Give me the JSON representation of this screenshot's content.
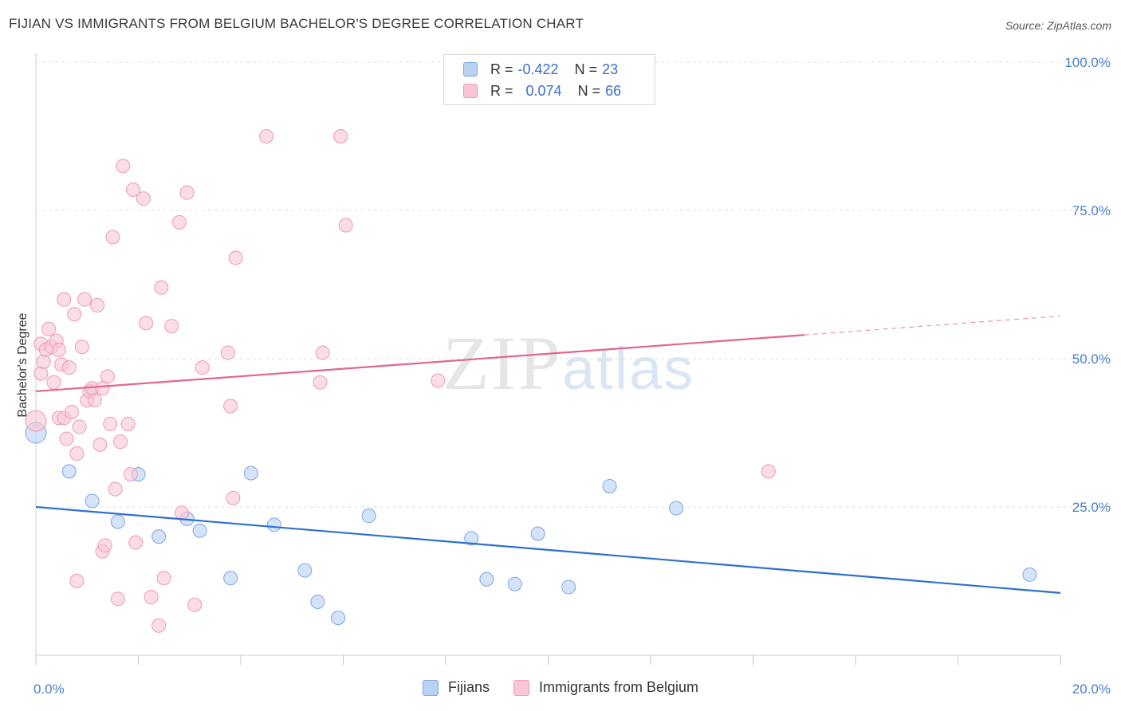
{
  "title": "FIJIAN VS IMMIGRANTS FROM BELGIUM BACHELOR'S DEGREE CORRELATION CHART",
  "source": "Source: ZipAtlas.com",
  "watermark": {
    "zip": "ZIP",
    "atlas": "atlas"
  },
  "legend": {
    "fijians": {
      "r_label": "R =",
      "r_value": "-0.422",
      "n_label": "N =",
      "n_value": "23"
    },
    "belgium": {
      "r_label": "R =",
      "r_value": "0.074",
      "n_label": "N =",
      "n_value": "66"
    }
  },
  "bottom_legend": {
    "fijians": "Fijians",
    "belgium": "Immigrants from Belgium"
  },
  "colors": {
    "fijians_fill": "#b9d1f3",
    "fijians_stroke": "#7aa6e6",
    "fijians_line": "#2f6fcf",
    "belgium_fill": "#f9c6d5",
    "belgium_stroke": "#ee99b4",
    "belgium_line": "#e2668f",
    "tick": "#4a7fd1",
    "grid": "#e0e0e0"
  },
  "chart_data": {
    "type": "scatter",
    "ylabel": "Bachelor's Degree",
    "xlim": [
      0,
      20
    ],
    "ylim": [
      0,
      100
    ],
    "x_ticks": [
      "0.0%",
      "20.0%"
    ],
    "y_ticks": [
      {
        "value": 25,
        "label": "25.0%"
      },
      {
        "value": 50,
        "label": "50.0%"
      },
      {
        "value": 75,
        "label": "75.0%"
      },
      {
        "value": 100,
        "label": "100.0%"
      }
    ],
    "grid": true,
    "legend_position": "top-center",
    "series": [
      {
        "name": "Fijians",
        "points": [
          [
            0.0,
            37.5
          ],
          [
            0.65,
            31.0
          ],
          [
            1.1,
            26.0
          ],
          [
            1.6,
            22.5
          ],
          [
            2.0,
            30.5
          ],
          [
            2.4,
            20.0
          ],
          [
            2.95,
            23.0
          ],
          [
            3.2,
            21.0
          ],
          [
            3.8,
            13.0
          ],
          [
            4.2,
            30.7
          ],
          [
            4.65,
            22.0
          ],
          [
            5.25,
            14.3
          ],
          [
            5.5,
            9.0
          ],
          [
            5.9,
            6.3
          ],
          [
            6.5,
            23.5
          ],
          [
            8.5,
            19.7
          ],
          [
            8.8,
            12.8
          ],
          [
            9.35,
            12.0
          ],
          [
            9.8,
            20.5
          ],
          [
            10.4,
            11.5
          ],
          [
            11.2,
            28.5
          ],
          [
            12.5,
            24.8
          ],
          [
            19.4,
            13.6
          ]
        ],
        "trend": {
          "x": [
            0,
            20
          ],
          "y": [
            25.0,
            10.5
          ]
        }
      },
      {
        "name": "Immigrants from Belgium",
        "points": [
          [
            0.0,
            39.5
          ],
          [
            0.1,
            52.5
          ],
          [
            0.1,
            47.5
          ],
          [
            0.15,
            49.5
          ],
          [
            0.2,
            51.5
          ],
          [
            0.25,
            55.0
          ],
          [
            0.3,
            52.0
          ],
          [
            0.35,
            46.0
          ],
          [
            0.4,
            53.0
          ],
          [
            0.45,
            51.5
          ],
          [
            0.45,
            40.0
          ],
          [
            0.5,
            49.0
          ],
          [
            0.55,
            60.0
          ],
          [
            0.55,
            40.0
          ],
          [
            0.6,
            36.5
          ],
          [
            0.65,
            48.5
          ],
          [
            0.7,
            41.0
          ],
          [
            0.75,
            57.5
          ],
          [
            0.8,
            12.5
          ],
          [
            0.8,
            34.0
          ],
          [
            0.85,
            38.5
          ],
          [
            0.9,
            52.0
          ],
          [
            0.95,
            60.0
          ],
          [
            1.0,
            43.0
          ],
          [
            1.05,
            44.5
          ],
          [
            1.1,
            45.0
          ],
          [
            1.15,
            43.0
          ],
          [
            1.2,
            59.0
          ],
          [
            1.25,
            35.5
          ],
          [
            1.3,
            45.0
          ],
          [
            1.3,
            17.5
          ],
          [
            1.35,
            18.5
          ],
          [
            1.4,
            47.0
          ],
          [
            1.45,
            39.0
          ],
          [
            1.5,
            70.5
          ],
          [
            1.55,
            28.0
          ],
          [
            1.6,
            9.5
          ],
          [
            1.65,
            36.0
          ],
          [
            1.7,
            82.5
          ],
          [
            1.8,
            39.0
          ],
          [
            1.85,
            30.5
          ],
          [
            1.9,
            78.5
          ],
          [
            1.95,
            19.0
          ],
          [
            2.1,
            77.0
          ],
          [
            2.15,
            56.0
          ],
          [
            2.25,
            9.8
          ],
          [
            2.4,
            5.0
          ],
          [
            2.45,
            62.0
          ],
          [
            2.5,
            13.0
          ],
          [
            2.65,
            55.5
          ],
          [
            2.8,
            73.0
          ],
          [
            2.85,
            24.0
          ],
          [
            2.95,
            78.0
          ],
          [
            3.1,
            8.5
          ],
          [
            3.25,
            48.5
          ],
          [
            3.75,
            51.0
          ],
          [
            3.8,
            42.0
          ],
          [
            3.85,
            26.5
          ],
          [
            3.9,
            67.0
          ],
          [
            4.5,
            87.5
          ],
          [
            5.55,
            46.0
          ],
          [
            5.6,
            51.0
          ],
          [
            5.95,
            87.5
          ],
          [
            6.05,
            72.5
          ],
          [
            7.85,
            46.3
          ],
          [
            14.3,
            31.0
          ]
        ],
        "trend": {
          "x": [
            0,
            15
          ],
          "y": [
            44.5,
            54.0
          ],
          "dashed_extension": {
            "x": [
              15,
              20
            ],
            "y": [
              54.0,
              57.2
            ]
          }
        }
      }
    ]
  }
}
